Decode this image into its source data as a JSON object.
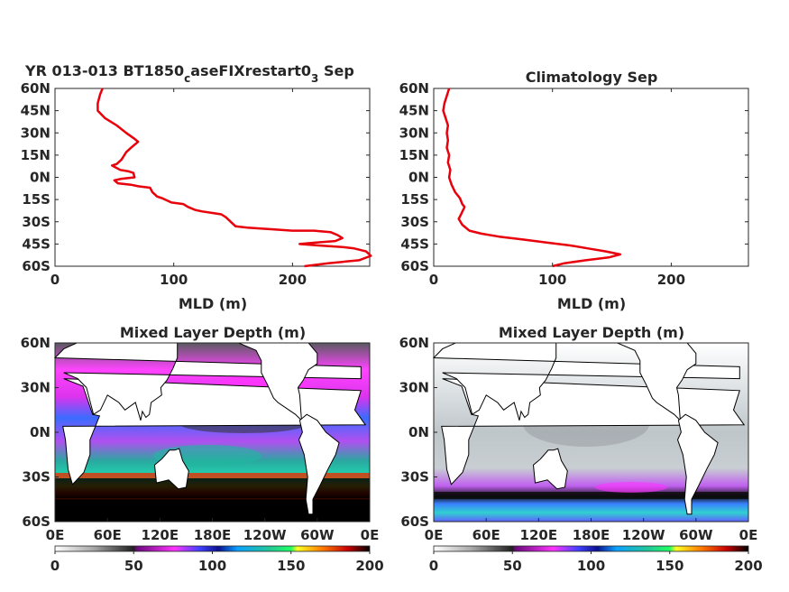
{
  "chart_data": [
    {
      "type": "line",
      "title_main": "YR 013-013 BT1850",
      "title_sub1": "c",
      "title_mid": "aseFIXrestart0",
      "title_sub2": "3",
      "title_end": " Sep",
      "xlabel": "MLD (m)",
      "xlim": [
        0,
        265
      ],
      "x_ticks": [
        "0",
        "100",
        "200"
      ],
      "y_ticks": [
        "60N",
        "45N",
        "30N",
        "15N",
        "0N",
        "15S",
        "30S",
        "45S",
        "60S"
      ],
      "ylim": [
        -60,
        60
      ],
      "series": [
        {
          "color": "#e8000b",
          "points": [
            [
              40,
              60
            ],
            [
              38,
              56
            ],
            [
              36,
              50
            ],
            [
              36,
              45
            ],
            [
              42,
              40
            ],
            [
              52,
              35
            ],
            [
              60,
              30
            ],
            [
              67,
              26
            ],
            [
              70,
              24
            ],
            [
              64,
              20
            ],
            [
              60,
              17
            ],
            [
              56,
              12
            ],
            [
              52,
              9
            ],
            [
              48,
              8
            ],
            [
              55,
              5
            ],
            [
              62,
              4
            ],
            [
              66,
              3
            ],
            [
              67,
              0
            ],
            [
              56,
              -1
            ],
            [
              50,
              -2
            ],
            [
              53,
              -4
            ],
            [
              64,
              -5
            ],
            [
              70,
              -6
            ],
            [
              80,
              -7
            ],
            [
              82,
              -10
            ],
            [
              86,
              -13
            ],
            [
              90,
              -14
            ],
            [
              98,
              -17
            ],
            [
              108,
              -18
            ],
            [
              112,
              -20
            ],
            [
              118,
              -22
            ],
            [
              124,
              -23
            ],
            [
              132,
              -24
            ],
            [
              140,
              -25
            ],
            [
              144,
              -27
            ],
            [
              148,
              -30
            ],
            [
              152,
              -33
            ],
            [
              162,
              -34
            ],
            [
              182,
              -35
            ],
            [
              200,
              -36
            ],
            [
              218,
              -36
            ],
            [
              232,
              -37
            ],
            [
              238,
              -39
            ],
            [
              242,
              -41
            ],
            [
              236,
              -43
            ],
            [
              220,
              -44
            ],
            [
              206,
              -45
            ],
            [
              222,
              -46
            ],
            [
              242,
              -47
            ],
            [
              252,
              -48
            ],
            [
              262,
              -50
            ],
            [
              266,
              -53
            ],
            [
              256,
              -56
            ],
            [
              230,
              -58
            ],
            [
              210,
              -60
            ]
          ]
        }
      ]
    },
    {
      "type": "line",
      "title": "Climatology Sep",
      "xlabel": "MLD (m)",
      "xlim": [
        0,
        265
      ],
      "x_ticks": [
        "0",
        "100",
        "200"
      ],
      "y_ticks": [
        "60N",
        "45N",
        "30N",
        "15N",
        "0N",
        "15S",
        "30S",
        "45S",
        "60S"
      ],
      "ylim": [
        -60,
        60
      ],
      "series": [
        {
          "color": "#e8000b",
          "points": [
            [
              13,
              60
            ],
            [
              11,
              55
            ],
            [
              9,
              50
            ],
            [
              8,
              45
            ],
            [
              10,
              40
            ],
            [
              12,
              35
            ],
            [
              11,
              30
            ],
            [
              12,
              25
            ],
            [
              11,
              20
            ],
            [
              13,
              15
            ],
            [
              12,
              10
            ],
            [
              14,
              5
            ],
            [
              13,
              0
            ],
            [
              15,
              -5
            ],
            [
              18,
              -10
            ],
            [
              22,
              -14
            ],
            [
              24,
              -18
            ],
            [
              26,
              -20
            ],
            [
              23,
              -25
            ],
            [
              21,
              -28
            ],
            [
              24,
              -32
            ],
            [
              30,
              -36
            ],
            [
              40,
              -38
            ],
            [
              55,
              -40
            ],
            [
              75,
              -42
            ],
            [
              95,
              -44
            ],
            [
              115,
              -46
            ],
            [
              130,
              -48
            ],
            [
              145,
              -50
            ],
            [
              157,
              -52
            ],
            [
              148,
              -54
            ],
            [
              128,
              -56
            ],
            [
              110,
              -58
            ],
            [
              100,
              -60
            ]
          ]
        }
      ]
    },
    {
      "type": "heatmap",
      "title": "Mixed Layer Depth (m)",
      "x_ticks": [
        "0E",
        "60E",
        "120E",
        "180E",
        "120W",
        "60W",
        "0E"
      ],
      "y_ticks": [
        "60N",
        "30N",
        "0N",
        "30S",
        "60S"
      ],
      "colorbar_ticks": [
        "0",
        "50",
        "100",
        "150",
        "200"
      ],
      "clim": [
        0,
        200
      ]
    },
    {
      "type": "heatmap",
      "title": "Mixed Layer Depth (m)",
      "x_ticks": [
        "0E",
        "60E",
        "120E",
        "180E",
        "120W",
        "60W",
        "0E"
      ],
      "y_ticks": [
        "60N",
        "30N",
        "0N",
        "30S",
        "60S"
      ],
      "colorbar_ticks": [
        "0",
        "50",
        "100",
        "150",
        "200"
      ],
      "clim": [
        0,
        200
      ]
    }
  ]
}
